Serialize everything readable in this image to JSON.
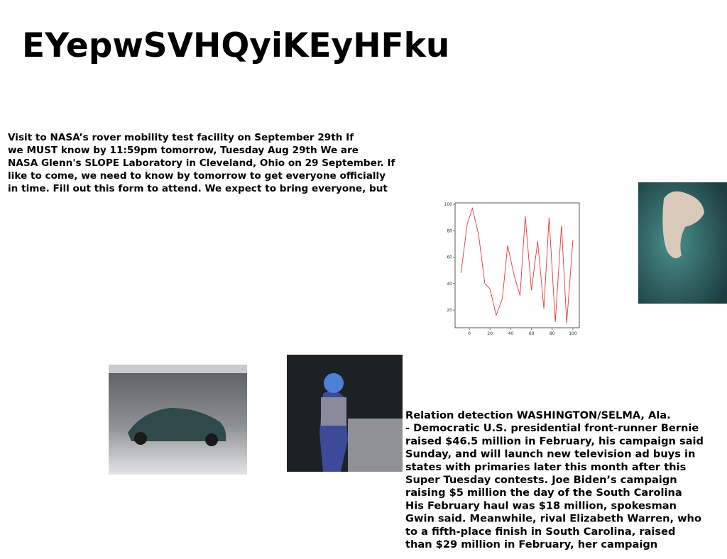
{
  "header": {
    "title": "EYepwSVHQyiKEyHFku"
  },
  "paragraph_1": {
    "lines": [
      "Visit to NASA’s rover mobility test facility on September 29th If",
      "we MUST know by 11:59pm tomorrow, Tuesday Aug 29th We are",
      "NASA Glenn's SLOPE Laboratory in Cleveland, Ohio on 29 September. If",
      "like to come, we need to know by tomorrow to get everyone officially",
      "in time. Fill out this form to attend. We expect to bring everyone, but"
    ]
  },
  "paragraph_2": {
    "lines": [
      "Relation detection WASHINGTON/SELMA, Ala.",
      "- Democratic U.S. presidential front-runner Bernie",
      "raised $46.5 million in February, his campaign said",
      "Sunday, and will launch new television ad buys in",
      "states with primaries later this month after this",
      "Super Tuesday contests. Joe Biden’s campaign",
      "raising $5 million the day of the South Carolina",
      "His February haul was $18 million, spokesman",
      "Gwin said. Meanwhile, rival Elizabeth Warren, who",
      "to a fifth-place finish in South Carolina, raised",
      "than $29 million in February, her campaign"
    ]
  },
  "chart_data": {
    "type": "line",
    "x": [
      -8,
      -2,
      3,
      9,
      15,
      20,
      26,
      32,
      37,
      43,
      49,
      54,
      60,
      66,
      72,
      77,
      83,
      89,
      94,
      100
    ],
    "series": [
      {
        "color": "#e8363a",
        "values": [
          48,
          85,
          97,
          77,
          40,
          36,
          16,
          29,
          69,
          47,
          31,
          91,
          35,
          72,
          21,
          90,
          11,
          84,
          10,
          73
        ]
      }
    ],
    "xlim": [
      -13.7,
      106.2
    ],
    "ylim": [
      6.6,
      101.1
    ],
    "xticks": [
      0,
      20,
      40,
      60,
      80,
      100
    ],
    "yticks": [
      20,
      40,
      60,
      80,
      100
    ]
  }
}
